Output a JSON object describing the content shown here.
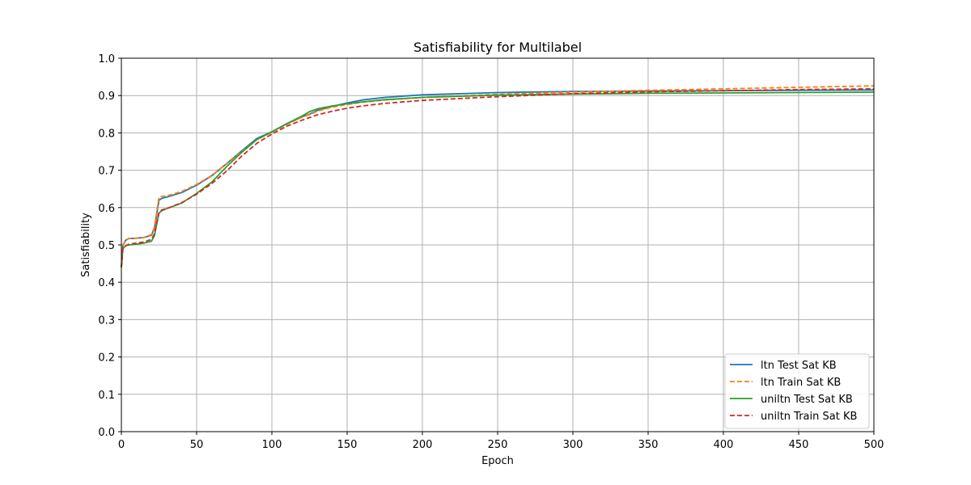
{
  "chart_data": {
    "type": "line",
    "title": "Satisfiability for Multilabel",
    "xlabel": "Epoch",
    "ylabel": "Satisfiability",
    "xlim": [
      0,
      500
    ],
    "ylim": [
      0.0,
      1.0
    ],
    "xticks": [
      0,
      50,
      100,
      150,
      200,
      250,
      300,
      350,
      400,
      450,
      500
    ],
    "yticks": [
      0.0,
      0.1,
      0.2,
      0.3,
      0.4,
      0.5,
      0.6,
      0.7,
      0.8,
      0.9,
      1.0
    ],
    "ytick_labels": [
      "0.0",
      "0.1",
      "0.2",
      "0.3",
      "0.4",
      "0.5",
      "0.6",
      "0.7",
      "0.8",
      "0.9",
      "1.0"
    ],
    "grid": true,
    "legend_position": "lower-right",
    "x": [
      0,
      1,
      3,
      5,
      10,
      15,
      20,
      22,
      25,
      27,
      30,
      40,
      50,
      60,
      70,
      80,
      90,
      100,
      110,
      120,
      125,
      130,
      140,
      150,
      160,
      175,
      200,
      250,
      300,
      350,
      400,
      450,
      500
    ],
    "series": [
      {
        "name": "ltn Test Sat KB",
        "color": "#1f77b4",
        "dash": "solid",
        "values": [
          0.44,
          0.5,
          0.513,
          0.517,
          0.518,
          0.52,
          0.526,
          0.545,
          0.62,
          0.625,
          0.628,
          0.64,
          0.66,
          0.685,
          0.718,
          0.752,
          0.785,
          0.803,
          0.825,
          0.843,
          0.85,
          0.86,
          0.871,
          0.88,
          0.888,
          0.895,
          0.902,
          0.908,
          0.911,
          0.912,
          0.913,
          0.914,
          0.915
        ]
      },
      {
        "name": "ltn Train Sat KB",
        "color": "#ff7f0e",
        "dash": "dashed",
        "values": [
          0.44,
          0.5,
          0.513,
          0.517,
          0.518,
          0.52,
          0.528,
          0.548,
          0.628,
          0.63,
          0.631,
          0.643,
          0.662,
          0.686,
          0.717,
          0.75,
          0.782,
          0.802,
          0.823,
          0.842,
          0.849,
          0.858,
          0.869,
          0.876,
          0.882,
          0.888,
          0.895,
          0.903,
          0.909,
          0.914,
          0.918,
          0.922,
          0.926
        ]
      },
      {
        "name": "uniltn Test Sat KB",
        "color": "#2ca02c",
        "dash": "solid",
        "values": [
          0.44,
          0.49,
          0.498,
          0.5,
          0.502,
          0.505,
          0.51,
          0.525,
          0.585,
          0.592,
          0.597,
          0.612,
          0.638,
          0.668,
          0.71,
          0.748,
          0.782,
          0.803,
          0.825,
          0.845,
          0.857,
          0.864,
          0.872,
          0.878,
          0.883,
          0.889,
          0.895,
          0.901,
          0.904,
          0.906,
          0.907,
          0.908,
          0.909
        ]
      },
      {
        "name": "uniltn Train Sat KB",
        "color": "#d62728",
        "dash": "dashed",
        "values": [
          0.44,
          0.49,
          0.498,
          0.502,
          0.505,
          0.508,
          0.515,
          0.53,
          0.588,
          0.594,
          0.597,
          0.613,
          0.636,
          0.664,
          0.698,
          0.738,
          0.772,
          0.797,
          0.818,
          0.834,
          0.841,
          0.848,
          0.858,
          0.866,
          0.872,
          0.879,
          0.887,
          0.897,
          0.905,
          0.91,
          0.913,
          0.916,
          0.918
        ]
      }
    ]
  }
}
